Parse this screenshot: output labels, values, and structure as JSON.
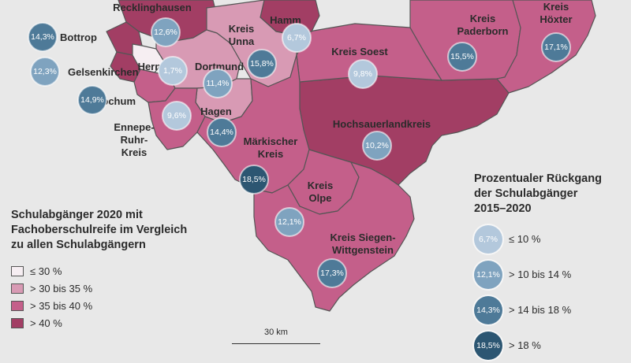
{
  "colors": {
    "background": "#e8e8e8",
    "class_1": "#f6eef2",
    "class_2": "#d89ab4",
    "class_3": "#c45f8a",
    "class_4": "#a23e64",
    "border": "#555555",
    "bubble_1": "#b3c8dc",
    "bubble_2": "#7fa3bf",
    "bubble_3": "#4e7a98",
    "bubble_4": "#2c5672"
  },
  "regions": {
    "recklinghausen": "Recklinghausen",
    "hamm": "Hamm",
    "unna": "Kreis\nUnna",
    "paderborn": "Kreis\nPaderborn",
    "hoexter": "Kreis\nHöxter",
    "soest": "Kreis Soest",
    "bottrop": "Bottrop",
    "herne": "Herne",
    "gelsenkirchen": "Gelsenkirchen",
    "dortmund": "Dortmund",
    "bochum": "Bochum",
    "hagen": "Hagen",
    "ennepe": "Ennepe-\nRuhr-\nKreis",
    "hochsauerland": "Hochsauerlandkreis",
    "maerkisch": "Märkischer\nKreis",
    "olpe": "Kreis\nOlpe",
    "siegen": "Kreis Siegen-\nWittgenstein"
  },
  "values": {
    "recklinghausen": "12,6%",
    "hamm": "6,7%",
    "unna": "15,8%",
    "paderborn": "15,5%",
    "hoexter": "17,1%",
    "soest": "9,8%",
    "bottrop": "14,3%",
    "herne": "1,7%",
    "gelsenkirchen": "12,3%",
    "dortmund": "11,4%",
    "bochum": "14,9%",
    "hagen": "14,4%",
    "ennepe": "9,6%",
    "hochsauerland": "10,2%",
    "maerkisch": "18,5%",
    "olpe": "12,1%",
    "siegen": "17,3%"
  },
  "legend_fill": {
    "title": "Schulabgänger 2020 mit\nFachoberschulreife im Vergleich\nzu allen Schulabgängern",
    "items": [
      "≤ 30 %",
      "> 30 bis 35 %",
      "> 35 bis 40 %",
      "> 40 %"
    ]
  },
  "legend_circle": {
    "title": "Prozentualer Rückgang\nder Schulabgänger\n2015–2020",
    "items": [
      {
        "sample": "6,7%",
        "label": "≤ 10 %"
      },
      {
        "sample": "12,1%",
        "label": "> 10 bis 14 %"
      },
      {
        "sample": "14,3%",
        "label": "> 14 bis 18 %"
      },
      {
        "sample": "18,5%",
        "label": "> 18 %"
      }
    ]
  },
  "scale": {
    "label": "30 km"
  }
}
